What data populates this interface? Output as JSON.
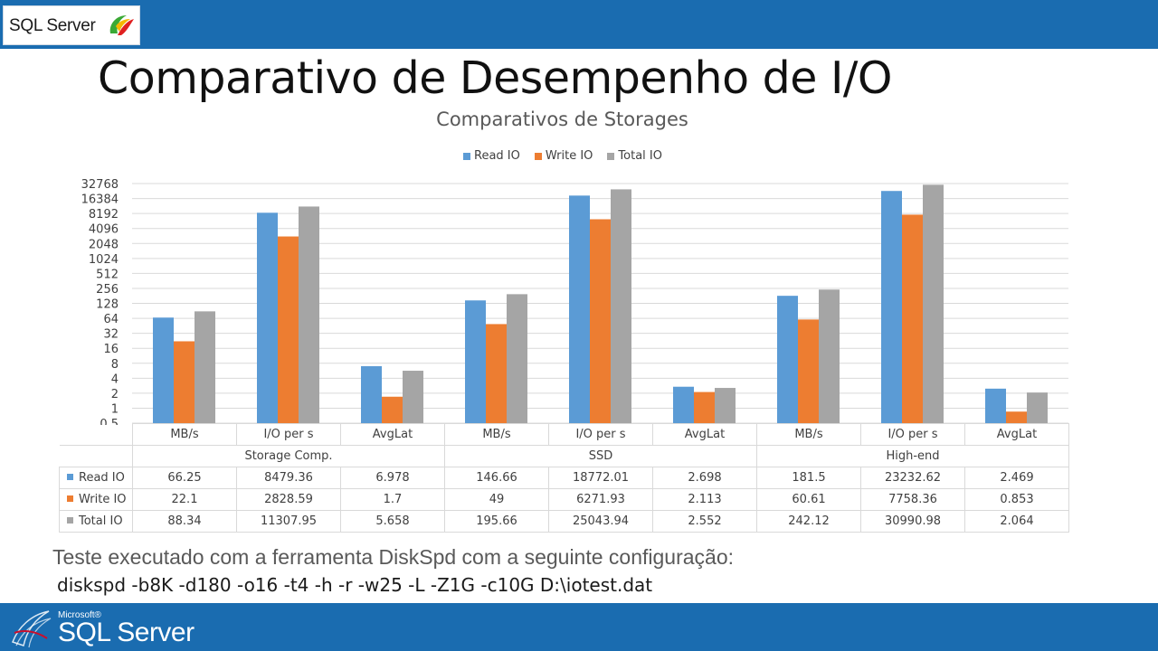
{
  "header": {
    "logo_text": "SQL Server"
  },
  "slide": {
    "title": "Comparativo de Desempenho de I/O"
  },
  "colors": {
    "read": "#5b9bd5",
    "write": "#ed7d31",
    "total": "#a5a5a5",
    "brand_blue": "#1a6cb0"
  },
  "chart_data": {
    "type": "bar",
    "title": "Comparativos de Storages",
    "y_scale": "log2",
    "ylim": [
      0.5,
      32768
    ],
    "y_ticks": [
      "0.5",
      "1",
      "2",
      "4",
      "8",
      "16",
      "32",
      "64",
      "128",
      "256",
      "512",
      "1024",
      "2048",
      "4096",
      "8192",
      "16384",
      "32768"
    ],
    "legend_position": "top-center",
    "categories": [
      "MB/s",
      "I/O per s",
      "AvgLat",
      "MB/s",
      "I/O per s",
      "AvgLat",
      "MB/s",
      "I/O per s",
      "AvgLat"
    ],
    "groups": [
      "Storage Comp.",
      "SSD",
      "High-end"
    ],
    "series": [
      {
        "name": "Read IO",
        "values": [
          66.25,
          8479.36,
          6.978,
          146.66,
          18772.01,
          2.698,
          181.5,
          23232.62,
          2.469
        ],
        "labels": [
          "66.25",
          "8479.36",
          "6.978",
          "146.66",
          "18772.01",
          "2.698",
          "181.5",
          "23232.62",
          "2.469"
        ]
      },
      {
        "name": "Write IO",
        "values": [
          22.1,
          2828.59,
          1.7,
          49,
          6271.93,
          2.113,
          60.61,
          7758.36,
          0.853
        ],
        "labels": [
          "22.1",
          "2828.59",
          "1.7",
          "49",
          "6271.93",
          "2.113",
          "60.61",
          "7758.36",
          "0.853"
        ]
      },
      {
        "name": "Total IO",
        "values": [
          88.34,
          11307.95,
          5.658,
          195.66,
          25043.94,
          2.552,
          242.12,
          30990.98,
          2.064
        ],
        "labels": [
          "88.34",
          "11307.95",
          "5.658",
          "195.66",
          "25043.94",
          "2.552",
          "242.12",
          "30990.98",
          "2.064"
        ]
      }
    ]
  },
  "footer": {
    "caption": "Teste executado com a ferramenta DiskSpd com a seguinte configuração:",
    "command": "diskspd -b8K -d180 -o16 -t4 -h -r -w25 -L -Z1G -c10G D:\\iotest.dat",
    "microsoft_label": "Microsoft®",
    "product_label": "SQL Server"
  }
}
